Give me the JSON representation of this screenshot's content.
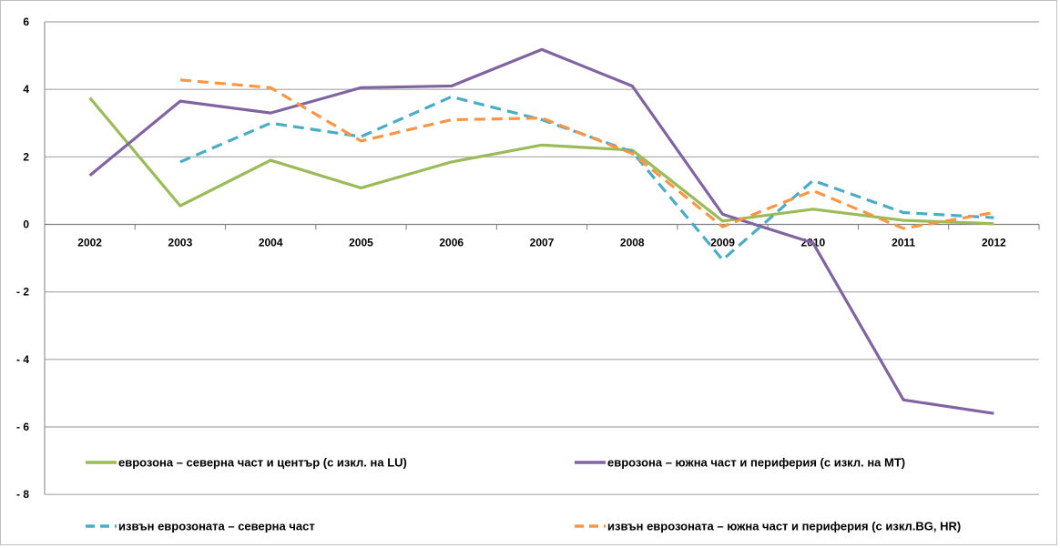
{
  "chart_data": {
    "type": "line",
    "title": "",
    "xlabel": "",
    "ylabel": "",
    "ylim": [
      -8,
      6
    ],
    "yticks": [
      6,
      4,
      2,
      0,
      -2,
      -4,
      -6,
      -8
    ],
    "ytick_labels": [
      "6",
      "4",
      "2",
      "0",
      "- 2",
      "- 4",
      "- 6",
      "- 8"
    ],
    "grid": true,
    "legend_position": "bottom",
    "categories": [
      "2002",
      "2003",
      "2004",
      "2005",
      "2006",
      "2007",
      "2008",
      "2009",
      "2010",
      "2011",
      "2012"
    ],
    "series": [
      {
        "name": "еврозона – северна част и център (с изкл. на LU)",
        "color": "#9bbb59",
        "dash": "solid",
        "values": [
          3.75,
          0.55,
          1.9,
          1.08,
          1.85,
          2.35,
          2.2,
          0.1,
          0.45,
          0.12,
          0.02
        ]
      },
      {
        "name": "еврозона – южна част и периферия (с изкл. на MT)",
        "color": "#8064a2",
        "dash": "solid",
        "values": [
          1.45,
          3.65,
          3.3,
          4.05,
          4.1,
          5.18,
          4.1,
          0.3,
          -0.55,
          -5.2,
          -5.6
        ]
      },
      {
        "name": "извън еврозоната – северна част",
        "color": "#4bacc6",
        "dash": "dashed",
        "values": [
          null,
          1.85,
          3.0,
          2.6,
          3.78,
          3.1,
          2.15,
          -1.05,
          1.3,
          0.35,
          0.2
        ]
      },
      {
        "name": "извън еврозоната – южна част и периферия (с изкл.BG, HR)",
        "color": "#f79646",
        "dash": "dashed",
        "values": [
          null,
          4.28,
          4.05,
          2.47,
          3.1,
          3.15,
          2.1,
          -0.07,
          1.0,
          -0.12,
          0.35
        ]
      }
    ]
  }
}
